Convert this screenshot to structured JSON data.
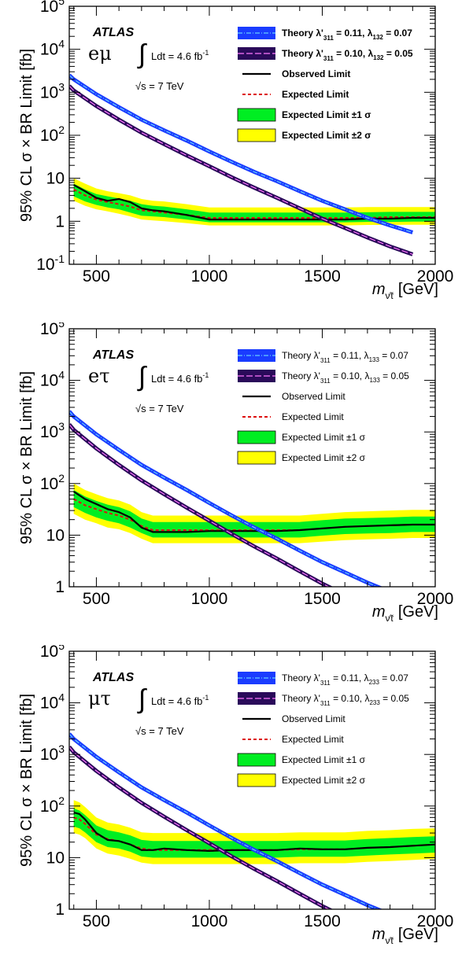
{
  "panels": [
    {
      "experiment": "ATLAS",
      "channel": "eμ",
      "lumi_text": "Ldt = 4.6 fb",
      "lumi_exp": "-1",
      "energy_text": "s = 7 TeV",
      "y_axis_label": "95% CL σ × BR Limit [fb]",
      "x_axis_label": "[GeV]",
      "x_axis_symbol": "m",
      "legend_bold": true,
      "legend": [
        {
          "label": "Theory λ'",
          "sub": "311",
          "rest": "= 0.11, λ",
          "sub2": "132",
          "tail": "= 0.07",
          "style": "theory1"
        },
        {
          "label": "Theory λ'",
          "sub": "311",
          "rest": "= 0.10, λ",
          "sub2": "132",
          "tail": "= 0.05",
          "style": "theory2"
        },
        {
          "label": "Observed Limit",
          "style": "observed"
        },
        {
          "label": "Expected Limit",
          "style": "expected"
        },
        {
          "label": "Expected Limit ±1 σ",
          "style": "band1"
        },
        {
          "label": "Expected Limit ±2 σ",
          "style": "band2"
        }
      ]
    },
    {
      "experiment": "ATLAS",
      "channel": "eτ",
      "lumi_text": "Ldt = 4.6 fb",
      "lumi_exp": "-1",
      "energy_text": "s = 7 TeV",
      "y_axis_label": "95% CL σ × BR Limit [fb]",
      "x_axis_label": "[GeV]",
      "x_axis_symbol": "m",
      "legend_bold": false,
      "legend": [
        {
          "label": "Theory λ'",
          "sub": "311",
          "rest": "= 0.11, λ",
          "sub2": "133",
          "tail": "= 0.07",
          "style": "theory1"
        },
        {
          "label": "Theory λ'",
          "sub": "311",
          "rest": "= 0.10, λ",
          "sub2": "133",
          "tail": "= 0.05",
          "style": "theory2"
        },
        {
          "label": "Observed Limit",
          "style": "observed"
        },
        {
          "label": "Expected Limit",
          "style": "expected"
        },
        {
          "label": "Expected Limit ±1 σ",
          "style": "band1"
        },
        {
          "label": "Expected Limit ±2 σ",
          "style": "band2"
        }
      ]
    },
    {
      "experiment": "ATLAS",
      "channel": "μτ",
      "lumi_text": "Ldt = 4.6 fb",
      "lumi_exp": "-1",
      "energy_text": "s = 7 TeV",
      "y_axis_label": "95% CL σ × BR Limit [fb]",
      "x_axis_label": "[GeV]",
      "x_axis_symbol": "m",
      "legend_bold": false,
      "legend": [
        {
          "label": "Theory λ'",
          "sub": "311",
          "rest": "= 0.11, λ",
          "sub2": "233",
          "tail": "= 0.07",
          "style": "theory1"
        },
        {
          "label": "Theory λ'",
          "sub": "311",
          "rest": "= 0.10, λ",
          "sub2": "233",
          "tail": "= 0.05",
          "style": "theory2"
        },
        {
          "label": "Observed Limit",
          "style": "observed"
        },
        {
          "label": "Expected Limit",
          "style": "expected"
        },
        {
          "label": "Expected Limit ±1 σ",
          "style": "band1"
        },
        {
          "label": "Expected Limit ±2 σ",
          "style": "band2"
        }
      ]
    }
  ],
  "colors": {
    "theory1_fill": "#1a3cff",
    "theory1_line": "#66ccff",
    "theory2_fill": "#2a0a5a",
    "theory2_line": "#ff77ff",
    "observed": "#000000",
    "expected": "#dd1111",
    "band1": "#00ee22",
    "band2": "#ffff00"
  },
  "chart_data": [
    {
      "type": "line",
      "channel": "eμ",
      "xlim": [
        380,
        2000
      ],
      "ylim": [
        0.1,
        100000
      ],
      "y_scale": "log",
      "x_ticks": [
        500,
        1000,
        1500,
        2000
      ],
      "y_ticks": [
        {
          "v": 0.1,
          "base": "10",
          "exp": "-1"
        },
        {
          "v": 1,
          "base": "1",
          "exp": ""
        },
        {
          "v": 10,
          "base": "10",
          "exp": ""
        },
        {
          "v": 100,
          "base": "10",
          "exp": "2"
        },
        {
          "v": 1000,
          "base": "10",
          "exp": "3"
        },
        {
          "v": 10000,
          "base": "10",
          "exp": "4"
        },
        {
          "v": 100000,
          "base": "10",
          "exp": "5"
        }
      ],
      "x": [
        400,
        450,
        500,
        550,
        600,
        650,
        700,
        750,
        800,
        900,
        1000,
        1100,
        1200,
        1300,
        1400,
        1500,
        1600,
        1700,
        1800,
        1900,
        2000
      ],
      "observed": [
        7,
        5,
        3.5,
        3,
        3.3,
        2.8,
        2,
        1.8,
        1.7,
        1.4,
        1.1,
        1.1,
        1.1,
        1.1,
        1.1,
        1.1,
        1.1,
        1.15,
        1.15,
        1.2,
        1.2
      ],
      "expected": [
        5.5,
        4,
        3.2,
        2.8,
        2.5,
        2.2,
        1.8,
        1.7,
        1.6,
        1.4,
        1.2,
        1.2,
        1.2,
        1.2,
        1.2,
        1.2,
        1.2,
        1.2,
        1.25,
        1.25,
        1.25
      ],
      "band1_low": [
        3.8,
        2.9,
        2.4,
        2.1,
        1.9,
        1.6,
        1.35,
        1.3,
        1.25,
        1.1,
        0.95,
        0.95,
        0.95,
        0.95,
        0.95,
        0.95,
        0.95,
        0.97,
        0.97,
        0.98,
        0.98
      ],
      "band1_high": [
        7.5,
        5.5,
        4.3,
        3.8,
        3.4,
        3,
        2.5,
        2.3,
        2.2,
        1.9,
        1.6,
        1.6,
        1.6,
        1.6,
        1.6,
        1.6,
        1.6,
        1.62,
        1.65,
        1.65,
        1.65
      ],
      "band2_low": [
        3,
        2.3,
        1.9,
        1.7,
        1.5,
        1.3,
        1.1,
        1.05,
        1.0,
        0.9,
        0.8,
        0.8,
        0.8,
        0.8,
        0.8,
        0.8,
        0.8,
        0.82,
        0.82,
        0.83,
        0.83
      ],
      "band2_high": [
        10,
        7.5,
        5.8,
        5,
        4.5,
        4,
        3.3,
        3,
        2.9,
        2.5,
        2.1,
        2.1,
        2.1,
        2.1,
        2.1,
        2.1,
        2.1,
        2.15,
        2.15,
        2.15,
        2.15
      ],
      "theory_x": [
        380,
        400,
        500,
        600,
        700,
        800,
        900,
        1000,
        1100,
        1200,
        1300,
        1400,
        1500,
        1600,
        1700,
        1800,
        1900
      ],
      "theory1": [
        2500,
        2000,
        900,
        450,
        230,
        130,
        75,
        42,
        24,
        14,
        8.5,
        5,
        3,
        1.9,
        1.2,
        0.8,
        0.55
      ],
      "theory2": [
        1400,
        1100,
        480,
        230,
        115,
        62,
        34,
        19,
        10.5,
        6,
        3.5,
        2,
        1.15,
        0.7,
        0.42,
        0.26,
        0.17
      ]
    },
    {
      "type": "line",
      "channel": "eτ",
      "xlim": [
        380,
        2000
      ],
      "ylim": [
        1,
        100000
      ],
      "y_scale": "log",
      "x_ticks": [
        500,
        1000,
        1500,
        2000
      ],
      "y_ticks": [
        {
          "v": 1,
          "base": "1",
          "exp": ""
        },
        {
          "v": 10,
          "base": "10",
          "exp": ""
        },
        {
          "v": 100,
          "base": "10",
          "exp": "2"
        },
        {
          "v": 1000,
          "base": "10",
          "exp": "3"
        },
        {
          "v": 10000,
          "base": "10",
          "exp": "4"
        },
        {
          "v": 100000,
          "base": "10",
          "exp": "5"
        }
      ],
      "x": [
        400,
        450,
        500,
        550,
        600,
        650,
        700,
        750,
        800,
        900,
        1000,
        1100,
        1200,
        1300,
        1400,
        1500,
        1600,
        1700,
        1800,
        1900,
        2000
      ],
      "observed": [
        70,
        50,
        40,
        32,
        28,
        22,
        14,
        11.5,
        11.5,
        11.5,
        12,
        12,
        12,
        12,
        12.5,
        13.5,
        14.5,
        15,
        15.5,
        16,
        16
      ],
      "expected": [
        50,
        38,
        32,
        27,
        24,
        20,
        15,
        12.5,
        12.5,
        12.5,
        12.5,
        12.5,
        12.5,
        12.5,
        12.5,
        13.5,
        14.5,
        15,
        15.5,
        16,
        16
      ],
      "band1_low": [
        35,
        27,
        22,
        19,
        17,
        14,
        11,
        9,
        9,
        9,
        9,
        9,
        9,
        9,
        9,
        9.8,
        10.5,
        10.8,
        11,
        11.5,
        11.5
      ],
      "band1_high": [
        75,
        56,
        46,
        39,
        35,
        29,
        21,
        18,
        18,
        18,
        18,
        18,
        18,
        18,
        18,
        19.5,
        21,
        21.5,
        22,
        23,
        23
      ],
      "band2_low": [
        26,
        20,
        17,
        14,
        13,
        11,
        8.5,
        7,
        7,
        7,
        7,
        7,
        7,
        7,
        7,
        7.5,
        8,
        8.3,
        8.5,
        8.8,
        8.8
      ],
      "band2_high": [
        100,
        75,
        62,
        52,
        47,
        39,
        28,
        24,
        24,
        24,
        24,
        24,
        24,
        24,
        24,
        26,
        28,
        29,
        30,
        31,
        31
      ],
      "theory_x": [
        380,
        400,
        500,
        600,
        700,
        800,
        900,
        1000,
        1100,
        1200,
        1300,
        1400,
        1500,
        1600,
        1700,
        1800
      ],
      "theory1": [
        2500,
        2000,
        900,
        450,
        230,
        130,
        75,
        42,
        24,
        14,
        8.5,
        5,
        3,
        1.9,
        1.2,
        0.8
      ],
      "theory2": [
        1400,
        1100,
        480,
        230,
        115,
        62,
        34,
        19,
        10.5,
        6,
        3.5,
        2,
        1.15,
        0.7,
        0.42,
        0.26
      ]
    },
    {
      "type": "line",
      "channel": "μτ",
      "xlim": [
        380,
        2000
      ],
      "ylim": [
        1,
        100000
      ],
      "y_scale": "log",
      "x_ticks": [
        500,
        1000,
        1500,
        2000
      ],
      "y_ticks": [
        {
          "v": 1,
          "base": "1",
          "exp": ""
        },
        {
          "v": 10,
          "base": "10",
          "exp": ""
        },
        {
          "v": 100,
          "base": "10",
          "exp": "2"
        },
        {
          "v": 1000,
          "base": "10",
          "exp": "3"
        },
        {
          "v": 10000,
          "base": "10",
          "exp": "4"
        },
        {
          "v": 100000,
          "base": "10",
          "exp": "5"
        }
      ],
      "x": [
        400,
        425,
        450,
        500,
        550,
        600,
        650,
        700,
        750,
        800,
        900,
        1000,
        1100,
        1200,
        1300,
        1400,
        1500,
        1600,
        1700,
        1800,
        1900,
        2000
      ],
      "observed": [
        75,
        70,
        55,
        30,
        22,
        21,
        18,
        14,
        14,
        15,
        14,
        13.5,
        14,
        14,
        14,
        15,
        14.5,
        14.5,
        15.5,
        16,
        17,
        18
      ],
      "expected": [
        60,
        55,
        45,
        28,
        23,
        21,
        18,
        15,
        14,
        14,
        14,
        14,
        14,
        14,
        14,
        14.5,
        14.5,
        14.5,
        15.5,
        16,
        17,
        18
      ],
      "band1_low": [
        40,
        37,
        31,
        20,
        16,
        15,
        13,
        10.5,
        10,
        10,
        10,
        10,
        10,
        10,
        10,
        10.4,
        10.4,
        10.4,
        11,
        11.5,
        12,
        12.5
      ],
      "band1_high": [
        90,
        82,
        67,
        42,
        34,
        31,
        27,
        22,
        21,
        21,
        21,
        21,
        21,
        21,
        21,
        21.5,
        21.5,
        21.5,
        23,
        24,
        25,
        26
      ],
      "band2_low": [
        30,
        28,
        24,
        15,
        12,
        11,
        9.5,
        8,
        7.5,
        7.5,
        7.5,
        7.5,
        7.5,
        7.5,
        7.5,
        7.8,
        7.8,
        7.8,
        8.3,
        8.6,
        9,
        9.5
      ],
      "band2_high": [
        130,
        118,
        96,
        60,
        48,
        44,
        38,
        31,
        30,
        30,
        30,
        30,
        30,
        30,
        30,
        31,
        31,
        31,
        33,
        34,
        36,
        37
      ],
      "theory_x": [
        380,
        400,
        500,
        600,
        700,
        800,
        900,
        1000,
        1100,
        1200,
        1300,
        1400,
        1500,
        1600,
        1700,
        1800
      ],
      "theory1": [
        2500,
        2000,
        900,
        450,
        230,
        130,
        75,
        42,
        24,
        14,
        8.5,
        5,
        3,
        1.9,
        1.2,
        0.8
      ],
      "theory2": [
        1400,
        1100,
        480,
        230,
        115,
        62,
        34,
        19,
        10.5,
        6,
        3.5,
        2,
        1.15,
        0.7,
        0.42,
        0.26
      ]
    }
  ]
}
